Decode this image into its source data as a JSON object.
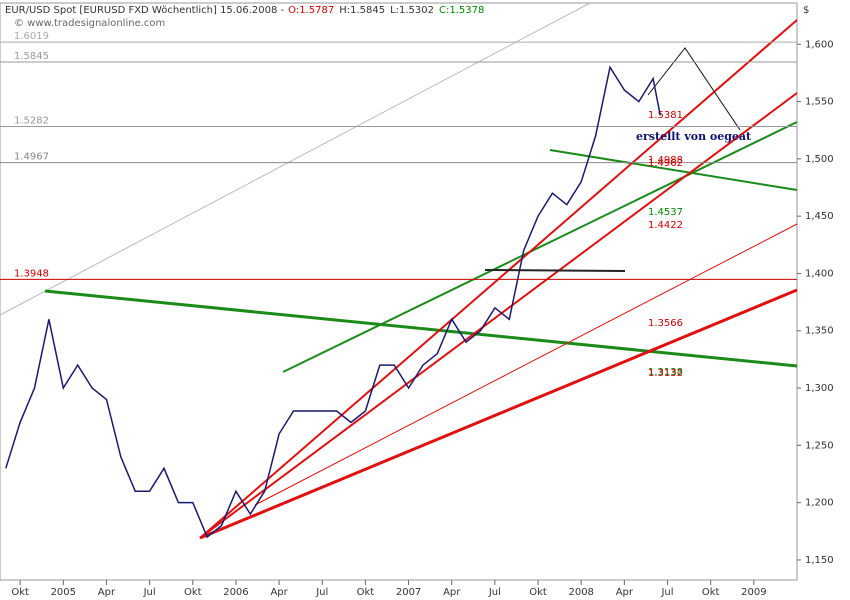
{
  "chart_data": {
    "type": "line",
    "title": "EUR/USD Spot [EURUSD FXD  Wöchentlich] 15.06.2008 -",
    "ohlc_labels": [
      {
        "text": "O:1.5787",
        "color": "#cc0000"
      },
      {
        "text": "H:1.5845",
        "color": "#333333"
      },
      {
        "text": "L:1.5302",
        "color": "#333333"
      },
      {
        "text": "C:1.5378",
        "color": "#008800"
      }
    ],
    "watermark": "© www.tradesignalonline.com",
    "y_axis_title": "$",
    "annotation": "erstellt von oegeat",
    "x": [
      -1,
      0,
      1,
      2,
      3,
      4,
      5,
      6,
      7,
      8,
      9,
      10,
      11,
      12,
      13,
      14,
      15,
      16,
      17,
      18,
      19,
      20,
      21,
      22,
      23,
      24,
      25,
      26,
      27,
      28,
      29,
      30,
      31,
      32,
      33,
      34,
      35,
      36,
      37,
      38,
      39,
      40,
      41,
      42,
      43,
      44,
      44.5
    ],
    "series": [
      {
        "name": "EUR/USD",
        "color": "#1a1a6e",
        "values": [
          1.23,
          1.27,
          1.3,
          1.36,
          1.3,
          1.32,
          1.3,
          1.29,
          1.24,
          1.21,
          1.21,
          1.23,
          1.2,
          1.2,
          1.17,
          1.18,
          1.21,
          1.19,
          1.21,
          1.26,
          1.28,
          1.28,
          1.28,
          1.28,
          1.27,
          1.28,
          1.32,
          1.32,
          1.3,
          1.32,
          1.33,
          1.36,
          1.34,
          1.35,
          1.37,
          1.36,
          1.42,
          1.45,
          1.47,
          1.46,
          1.48,
          1.52,
          1.58,
          1.56,
          1.55,
          1.57,
          1.5378
        ]
      }
    ],
    "xlim": [
      -1.4,
      54
    ],
    "xticks": [
      {
        "value": 0,
        "label": "Okt"
      },
      {
        "value": 3,
        "label": "2005"
      },
      {
        "value": 6,
        "label": "Apr"
      },
      {
        "value": 9,
        "label": "Jul"
      },
      {
        "value": 12,
        "label": "Okt"
      },
      {
        "value": 15,
        "label": "2006"
      },
      {
        "value": 18,
        "label": "Apr"
      },
      {
        "value": 21,
        "label": "Jul"
      },
      {
        "value": 24,
        "label": "Okt"
      },
      {
        "value": 27,
        "label": "2007"
      },
      {
        "value": 30,
        "label": "Apr"
      },
      {
        "value": 33,
        "label": "Jul"
      },
      {
        "value": 36,
        "label": "Okt"
      },
      {
        "value": 39,
        "label": "2008"
      },
      {
        "value": 42,
        "label": "Apr"
      },
      {
        "value": 45,
        "label": "Jul"
      },
      {
        "value": 48,
        "label": "Okt"
      },
      {
        "value": 51,
        "label": "2009"
      }
    ],
    "ylim": [
      1.1325,
      1.636
    ],
    "yticks": [
      {
        "value": 1.15,
        "label": "1,150"
      },
      {
        "value": 1.2,
        "label": "1,200"
      },
      {
        "value": 1.25,
        "label": "1,250"
      },
      {
        "value": 1.3,
        "label": "1,300"
      },
      {
        "value": 1.35,
        "label": "1,350"
      },
      {
        "value": 1.4,
        "label": "1,400"
      },
      {
        "value": 1.45,
        "label": "1,450"
      },
      {
        "value": 1.5,
        "label": "1,500"
      },
      {
        "value": 1.55,
        "label": "1,550"
      },
      {
        "value": 1.6,
        "label": "1,600"
      }
    ],
    "levels": [
      {
        "value": 1.6019,
        "label": "1.6019",
        "color": "#aaaaaa"
      },
      {
        "value": 1.5845,
        "label": "1.5845",
        "color": "#999999"
      },
      {
        "value": 1.5282,
        "label": "1.5282",
        "color": "#999999"
      },
      {
        "value": 1.4967,
        "label": "1.4967",
        "color": "#888888"
      },
      {
        "value": 1.3948,
        "label": "1.3948",
        "color": "#cc0000"
      }
    ],
    "line_labels": [
      {
        "value": 1.5381,
        "label": "1.5381",
        "color": "#cc0000"
      },
      {
        "value": 1.4988,
        "label": "1.4988",
        "color": "#cc0000"
      },
      {
        "value": 1.4962,
        "label": "1.4962",
        "color": "#cc0000"
      },
      {
        "value": 1.4537,
        "label": "1.4537",
        "color": "#008800"
      },
      {
        "value": 1.4422,
        "label": "1.4422",
        "color": "#cc0000"
      },
      {
        "value": 1.3566,
        "label": "1.3566",
        "color": "#cc0000"
      },
      {
        "value": 1.3138,
        "label": "1.3138",
        "color": "#008800"
      },
      {
        "value": 1.3132,
        "label": "1.3132",
        "color": "#cc0000"
      }
    ]
  }
}
